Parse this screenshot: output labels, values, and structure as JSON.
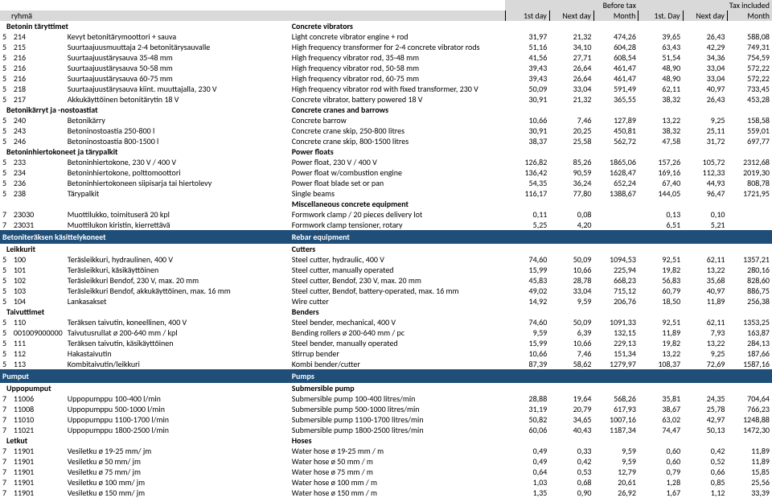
{
  "header": {
    "ryhma": "ryhmä",
    "before_tax": "Before tax",
    "tax_included": "Tax included",
    "first_day": "1st day",
    "next_day": "Next day",
    "month": "Month",
    "first_day_2": "1st. Day",
    "next_day_2": "Next day",
    "month_2": "Month"
  },
  "sections": [
    {
      "type": "cat",
      "fi": "Betonin täryttimet",
      "en": "Concrete vibrators",
      "rows": [
        {
          "a": "5",
          "b": "214",
          "fi": "Kevyt betonitärymoottori + sauva",
          "en": "Light concrete vibrator engine + rod",
          "v": [
            "31,97",
            "21,32",
            "474,26",
            "39,65",
            "26,43",
            "588,08"
          ]
        },
        {
          "a": "5",
          "b": "215",
          "fi": "Suurtaajuusmuuttaja 2-4 betonitärysauvalle",
          "en": "High frequency transformer for 2-4 concrete vibrator rods",
          "v": [
            "51,16",
            "34,10",
            "604,28",
            "63,43",
            "42,29",
            "749,31"
          ]
        },
        {
          "a": "5",
          "b": "216",
          "fi": "Suurtaajuustärysauva 35-48 mm",
          "en": "High frequency vibrator rod, 35-48 mm",
          "v": [
            "41,56",
            "27,71",
            "608,54",
            "51,54",
            "34,36",
            "754,59"
          ]
        },
        {
          "a": "5",
          "b": "216",
          "fi": "Suurtaajuustärysauva 50-58 mm",
          "en": "High frequency vibrator rod, 50-58 mm",
          "v": [
            "39,43",
            "26,64",
            "461,47",
            "48,90",
            "33,04",
            "572,22"
          ]
        },
        {
          "a": "5",
          "b": "216",
          "fi": "Suurtaajuustärysauva 60-75 mm",
          "en": "High frequency vibrator rod, 60-75 mm",
          "v": [
            "39,43",
            "26,64",
            "461,47",
            "48,90",
            "33,04",
            "572,22"
          ]
        },
        {
          "a": "5",
          "b": "218",
          "fi": "Suurtaajuustärysauva kiint. muuttajalla, 230 V",
          "en": "High frequency vibrator rod with fixed transformer, 230 V",
          "v": [
            "50,09",
            "33,04",
            "591,49",
            "62,11",
            "40,97",
            "733,45"
          ]
        },
        {
          "a": "5",
          "b": "217",
          "fi": "Akkukäyttöinen betonitärytin 18 V",
          "en": "Concrete vibrator, battery powered 18 V",
          "v": [
            "30,91",
            "21,32",
            "365,55",
            "38,32",
            "26,43",
            "453,28"
          ]
        }
      ]
    },
    {
      "type": "cat",
      "fi": "Betonikärryt ja -nostoastiat",
      "en": "Concrete cranes and barrows",
      "rows": [
        {
          "a": "5",
          "b": "240",
          "fi": "Betonikärry",
          "en": "Concrete barrow",
          "v": [
            "10,66",
            "7,46",
            "127,89",
            "13,22",
            "9,25",
            "158,58"
          ]
        },
        {
          "a": "5",
          "b": "243",
          "fi": "Betoninostoastia 250-800 l",
          "en": "Concrete crane skip, 250-800 litres",
          "v": [
            "30,91",
            "20,25",
            "450,81",
            "38,32",
            "25,11",
            "559,01"
          ]
        },
        {
          "a": "5",
          "b": "246",
          "fi": "Betoninostoastia 800-1500 l",
          "en": "Concrete crane skip, 800-1500 litres",
          "v": [
            "38,37",
            "25,58",
            "562,72",
            "47,58",
            "31,72",
            "697,77"
          ]
        }
      ]
    },
    {
      "type": "cat",
      "fi": "Betoninhiertokoneet ja tärypalkit",
      "en": "Power floats",
      "rows": [
        {
          "a": "5",
          "b": "233",
          "fi": "Betoninhiertokone, 230 V / 400 V",
          "en": "Power float, 230 V / 400 V",
          "v": [
            "126,82",
            "85,26",
            "1865,06",
            "157,26",
            "105,72",
            "2312,68"
          ]
        },
        {
          "a": "5",
          "b": "234",
          "fi": "Betoninhiertokone, polttomoottori",
          "en": "Power float w/combustion engine",
          "v": [
            "136,42",
            "90,59",
            "1628,47",
            "169,16",
            "112,33",
            "2019,30"
          ]
        },
        {
          "a": "5",
          "b": "236",
          "fi": "Betoninhiertokoneen siipisarja tai hiertolevy",
          "en": "Power float blade set or pan",
          "v": [
            "54,35",
            "36,24",
            "652,24",
            "67,40",
            "44,93",
            "808,78"
          ]
        },
        {
          "a": "5",
          "b": "238",
          "fi": "Tärypalkit",
          "en": "Single beams",
          "v": [
            "116,17",
            "77,80",
            "1388,67",
            "144,05",
            "96,47",
            "1721,95"
          ]
        }
      ]
    },
    {
      "type": "cat",
      "fi": "",
      "en": "Miscellaneous concrete equipment",
      "rows": [
        {
          "a": "7",
          "b": "23030",
          "fi": "Muottilukko, toimituserä 20 kpl",
          "en": "Formwork clamp / 20 pieces delivery lot",
          "v": [
            "0,11",
            "0,08",
            "",
            "0,13",
            "0,10",
            ""
          ]
        },
        {
          "a": "7",
          "b": "23031",
          "fi": "Muottilukon kiristin, kierrettävä",
          "en": "Formwork clamp tensioner, rotary",
          "v": [
            "5,25",
            "4,20",
            "",
            "6,51",
            "5,21",
            ""
          ]
        }
      ]
    },
    {
      "type": "section",
      "fi": "Betoniteräksen käsittelykoneet",
      "en": "Rebar equipment"
    },
    {
      "type": "cat",
      "fi": "Leikkurit",
      "en": "Cutters",
      "rows": [
        {
          "a": "5",
          "b": "100",
          "fi": "Teräsleikkuri, hydraulinen, 400 V",
          "en": "Steel cutter, hydraulic, 400 V",
          "v": [
            "74,60",
            "50,09",
            "1094,53",
            "92,51",
            "62,11",
            "1357,21"
          ]
        },
        {
          "a": "5",
          "b": "101",
          "fi": "Teräsleikkuri, käsikäyttöinen",
          "en": "Steel cutter, manually operated",
          "v": [
            "15,99",
            "10,66",
            "225,94",
            "19,82",
            "13,22",
            "280,16"
          ]
        },
        {
          "a": "5",
          "b": "102",
          "fi": "Teräsleikkuri Bendof, 230 V, max. 20 mm",
          "en": "Steel cutter, Bendof, 230 V, max. 20 mm",
          "v": [
            "45,83",
            "28,78",
            "668,23",
            "56,83",
            "35,68",
            "828,60"
          ]
        },
        {
          "a": "5",
          "b": "103",
          "fi": "Teräsleikkuri Bendof, akkukäyttöinen, max. 16 mm",
          "en": "Steel cutter, Bendof, battery-operated, max. 16 mm",
          "v": [
            "49,02",
            "33,04",
            "715,12",
            "60,79",
            "40,97",
            "886,75"
          ]
        },
        {
          "a": "5",
          "b": "104",
          "fi": "Lankasakset",
          "en": "Wire cutter",
          "v": [
            "14,92",
            "9,59",
            "206,76",
            "18,50",
            "11,89",
            "256,38"
          ]
        }
      ]
    },
    {
      "type": "cat",
      "fi": "Taivuttimet",
      "en": "Benders",
      "rows": [
        {
          "a": "5",
          "b": "110",
          "fi": "Teräksen taivutin, koneellinen, 400 V",
          "en": "Steel bender, mechanical, 400 V",
          "v": [
            "74,60",
            "50,09",
            "1091,33",
            "92,51",
            "62,11",
            "1353,25"
          ]
        },
        {
          "a": "5",
          "b": "001009000000",
          "fi": "Taivutusrullat ø 200-640 mm / kpl",
          "en": "Bending rollers ø 200-640 mm / pc",
          "v": [
            "9,59",
            "6,39",
            "132,15",
            "11,89",
            "7,93",
            "163,87"
          ]
        },
        {
          "a": "5",
          "b": "111",
          "fi": "Teräksen taivutin, käsikäyttöinen",
          "en": "Steel bender, manually operated",
          "v": [
            "15,99",
            "10,66",
            "229,13",
            "19,82",
            "13,22",
            "284,13"
          ]
        },
        {
          "a": "5",
          "b": "112",
          "fi": "Hakastaivutin",
          "en": "Stirrup bender",
          "v": [
            "10,66",
            "7,46",
            "151,34",
            "13,22",
            "9,25",
            "187,66"
          ]
        },
        {
          "a": "5",
          "b": "113",
          "fi": "Kombitaivutin/leikkuri",
          "en": "Kombi bender/cutter",
          "v": [
            "87,39",
            "58,62",
            "1279,97",
            "108,37",
            "72,69",
            "1587,16"
          ]
        }
      ]
    },
    {
      "type": "section",
      "fi": "Pumput",
      "en": "Pumps"
    },
    {
      "type": "cat",
      "fi": "Uppopumput",
      "en": "Submersible pump",
      "rows": [
        {
          "a": "7",
          "b": "11006",
          "fi": "Uppopumppu 100-400 l/min",
          "en": "Submersible pump 100-400 litres/min",
          "v": [
            "28,88",
            "19,64",
            "568,26",
            "35,81",
            "24,35",
            "704,64"
          ]
        },
        {
          "a": "7",
          "b": "11008",
          "fi": "Uppopumppu 500-1000 l/min",
          "en": "Submersible pump 500-1000 litres/min",
          "v": [
            "31,19",
            "20,79",
            "617,93",
            "38,67",
            "25,78",
            "766,23"
          ]
        },
        {
          "a": "7",
          "b": "11010",
          "fi": "Uppopumppu 1100-1700 l/min",
          "en": "Submersible pump 1100-1700 litres/min",
          "v": [
            "50,82",
            "34,65",
            "1007,16",
            "63,02",
            "42,97",
            "1248,88"
          ]
        },
        {
          "a": "7",
          "b": "11021",
          "fi": "Uppopumppu 1800-2500 l/min",
          "en": "Submersible pump 1800-2500 litres/min",
          "v": [
            "60,06",
            "40,43",
            "1187,34",
            "74,47",
            "50,13",
            "1472,30"
          ]
        }
      ]
    },
    {
      "type": "cat",
      "fi": "Letkut",
      "en": "Hoses",
      "rows": [
        {
          "a": "7",
          "b": "11901",
          "fi": "Vesiletku ø 19-25 mm/ jm",
          "en": "Water hose ø 19-25 mm / m",
          "v": [
            "0,49",
            "0,33",
            "9,59",
            "0,60",
            "0,42",
            "11,89"
          ]
        },
        {
          "a": "7",
          "b": "11901",
          "fi": "Vesiletku ø 50 mm/ jm",
          "en": "Water hose ø 50 mm / m",
          "v": [
            "0,49",
            "0,42",
            "9,59",
            "0,60",
            "0,52",
            "11,89"
          ]
        },
        {
          "a": "7",
          "b": "11901",
          "fi": "Vesiletku ø 75 mm/ jm",
          "en": "Water hose ø 75 mm / m",
          "v": [
            "0,64",
            "0,53",
            "12,79",
            "0,79",
            "0,66",
            "15,85"
          ]
        },
        {
          "a": "7",
          "b": "11901",
          "fi": "Vesiletku ø 100 mm/ jm",
          "en": "Water hose ø 100 mm / m",
          "v": [
            "1,03",
            "0,68",
            "20,61",
            "1,28",
            "0,85",
            "25,56"
          ]
        },
        {
          "a": "7",
          "b": "11901",
          "fi": "Vesiletku ø 150 mm/ jm",
          "en": "Water hose ø 150 mm / m",
          "v": [
            "1,35",
            "0,90",
            "26,92",
            "1,67",
            "1,12",
            "33,39"
          ]
        }
      ]
    }
  ]
}
